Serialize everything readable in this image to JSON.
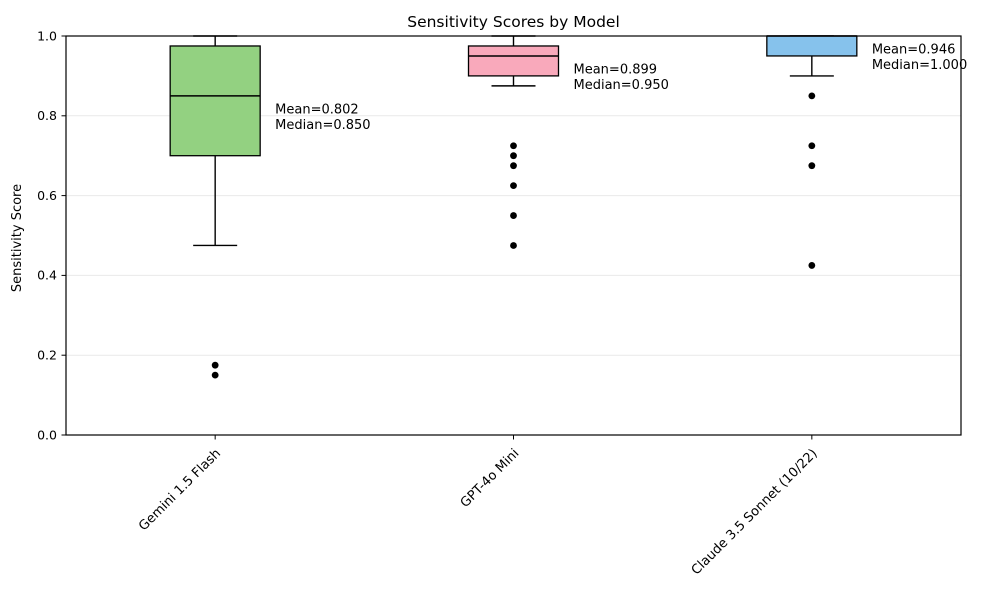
{
  "chart_data": {
    "type": "boxplot",
    "title": "Sensitivity Scores by Model",
    "ylabel": "Sensitivity Score",
    "xlabel": "",
    "ylim": [
      0.0,
      1.0
    ],
    "ytick_values": [
      0.0,
      0.2,
      0.4,
      0.6,
      0.8,
      1.0
    ],
    "ytick_labels": [
      "0.0",
      "0.2",
      "0.4",
      "0.6",
      "0.8",
      "1.0"
    ],
    "grid": "horizontal-light",
    "legend": "none",
    "categories": [
      "Gemini 1.5 Flash",
      "GPT-4o Mini",
      "Claude 3.5 Sonnet (10/22)"
    ],
    "colors": {
      "box_fills": [
        "#93d181",
        "#f9a9bb",
        "#86c2ec"
      ],
      "box_edge": "#000000",
      "gridline": "#e9e9e9",
      "outlier": "#000000"
    },
    "series": [
      {
        "model": "Gemini 1.5 Flash",
        "fill_color": "#93d181",
        "whisker_low": 0.475,
        "q1": 0.7,
        "median": 0.85,
        "q3": 0.975,
        "whisker_high": 1.0,
        "outliers": [
          0.175,
          0.15
        ],
        "mean": 0.802,
        "mean_label": "Mean=0.802",
        "median_label": "Median=0.850"
      },
      {
        "model": "GPT-4o Mini",
        "fill_color": "#f9a9bb",
        "whisker_low": 0.875,
        "q1": 0.9,
        "median": 0.95,
        "q3": 0.975,
        "whisker_high": 1.0,
        "outliers": [
          0.725,
          0.7,
          0.675,
          0.625,
          0.55,
          0.475
        ],
        "mean": 0.899,
        "mean_label": "Mean=0.899",
        "median_label": "Median=0.950"
      },
      {
        "model": "Claude 3.5 Sonnet (10/22)",
        "fill_color": "#86c2ec",
        "whisker_low": 0.9,
        "q1": 0.95,
        "median": 1.0,
        "q3": 1.0,
        "whisker_high": 1.0,
        "outliers": [
          0.85,
          0.725,
          0.675,
          0.425
        ],
        "mean": 0.946,
        "mean_label": "Mean=0.946",
        "median_label": "Median=1.000"
      }
    ]
  }
}
